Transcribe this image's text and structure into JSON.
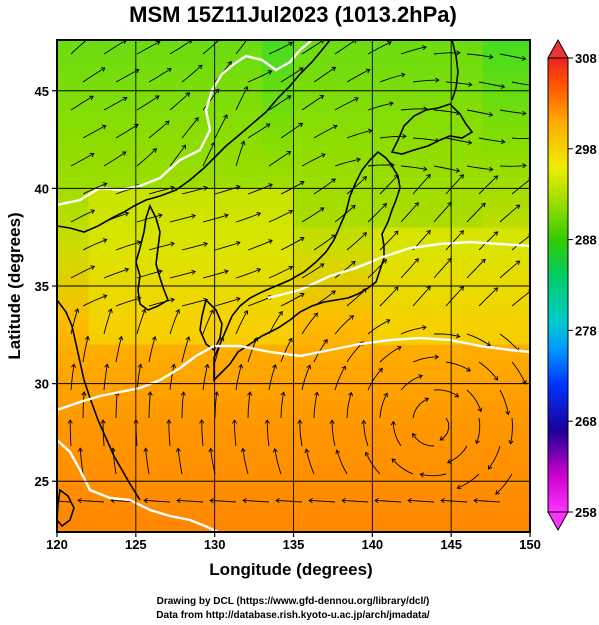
{
  "chart_data": {
    "type": "heatmap",
    "title": "MSM 15Z11Jul2023 (1013.2hPa)",
    "xlabel": "Longitude (degrees)",
    "ylabel": "Latitude  (degrees)",
    "xlim": [
      120,
      150
    ],
    "ylim": [
      22.4,
      47.6
    ],
    "x_ticks": [
      120,
      125,
      130,
      135,
      140,
      145,
      150
    ],
    "x_tick_labels": [
      "120",
      "125",
      "130",
      "135",
      "140",
      "145",
      "150"
    ],
    "y_ticks": [
      25,
      30,
      35,
      40,
      45
    ],
    "y_tick_labels": [
      "25",
      "30",
      "35",
      "40",
      "45"
    ],
    "grid": true,
    "field": "air temperature (K), shaded, with surface wind streamlines",
    "colorbar": {
      "min": 258,
      "max": 308,
      "ticks": [
        258,
        268,
        278,
        288,
        298,
        308
      ],
      "tick_labels": [
        "258",
        "268",
        "278",
        "288",
        "298",
        "308"
      ],
      "colors": [
        "#ff33ff",
        "#cc00cc",
        "#1a0099",
        "#0033ff",
        "#0099ff",
        "#00cccc",
        "#00cc66",
        "#33cc00",
        "#99dd00",
        "#eeee00",
        "#ffaa00",
        "#ff5500",
        "#ee2222"
      ]
    },
    "temperature_regions": [
      {
        "lon": [
          120,
          133
        ],
        "lat": [
          40,
          47.6
        ],
        "temp_k": 291
      },
      {
        "lon": [
          135,
          147
        ],
        "lat": [
          38,
          47.6
        ],
        "temp_k": 293
      },
      {
        "lon": [
          140,
          150
        ],
        "lat": [
          32,
          38
        ],
        "temp_k": 295
      },
      {
        "lon": [
          122,
          135
        ],
        "lat": [
          32,
          40
        ],
        "temp_k": 297
      },
      {
        "lon": [
          120,
          150
        ],
        "lat": [
          27,
          32
        ],
        "temp_k": 299
      },
      {
        "lon": [
          120,
          150
        ],
        "lat": [
          22.4,
          27
        ],
        "temp_k": 301
      }
    ]
  },
  "credits": {
    "line1": "Drawing by DCL (https://www.gfd-dennou.org/library/dcl/)",
    "line2": "Data from http://database.rish.kyoto-u.ac.jp/arch/jmadata/"
  }
}
